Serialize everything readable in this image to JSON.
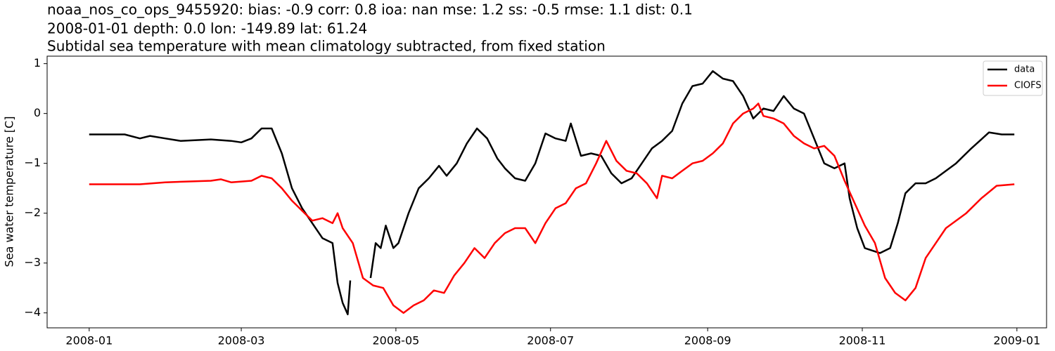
{
  "chart_data": {
    "type": "line",
    "title": [
      "noaa_nos_co_ops_9455920: bias: -0.9  corr: 0.8  ioa: nan  mse: 1.2  ss: -0.5  rmse: 1.1  dist: 0.1",
      "2008-01-01 depth: 0.0 lon: -149.89 lat: 61.24",
      "Subtidal sea temperature with mean climatology subtracted, from fixed station"
    ],
    "ylabel": "Sea water temperature [C]",
    "xlim": [
      -16.6,
      377.7
    ],
    "ylim": [
      -4.3,
      1.15
    ],
    "xticks": [
      {
        "value": 0,
        "label": "2008-01"
      },
      {
        "value": 60,
        "label": "2008-03"
      },
      {
        "value": 121,
        "label": "2008-05"
      },
      {
        "value": 182,
        "label": "2008-07"
      },
      {
        "value": 244,
        "label": "2008-09"
      },
      {
        "value": 305,
        "label": "2008-11"
      },
      {
        "value": 366,
        "label": "2009-01"
      }
    ],
    "yticks": [
      {
        "value": -4,
        "label": "−4"
      },
      {
        "value": -3,
        "label": "−3"
      },
      {
        "value": -2,
        "label": "−2"
      },
      {
        "value": -1,
        "label": "−1"
      },
      0,
      1
    ],
    "legend": "upper right",
    "series": [
      {
        "name": "data",
        "color": "#000000",
        "x": [
          0,
          14,
          20,
          24,
          30,
          36,
          48,
          56,
          60,
          64,
          68,
          72,
          76,
          80,
          84,
          88,
          92,
          96,
          98,
          100,
          102,
          103,
          107,
          111,
          113,
          115,
          117,
          120,
          122,
          126,
          130,
          134,
          138,
          141,
          145,
          149,
          153,
          157,
          161,
          164,
          168,
          172,
          176,
          180,
          184,
          188,
          190,
          194,
          198,
          202,
          206,
          210,
          214,
          218,
          222,
          226,
          230,
          234,
          238,
          242,
          246,
          250,
          254,
          258,
          262,
          266,
          270,
          274,
          278,
          282,
          286,
          290,
          294,
          298,
          300,
          303,
          306,
          312,
          316,
          319,
          322,
          326,
          330,
          334,
          342,
          348,
          355,
          360,
          365
        ],
        "values": [
          -0.42,
          -0.42,
          -0.5,
          -0.45,
          -0.5,
          -0.55,
          -0.52,
          -0.55,
          -0.58,
          -0.5,
          -0.3,
          -0.3,
          -0.8,
          -1.5,
          -1.9,
          -2.2,
          -2.5,
          -2.6,
          -3.4,
          -3.8,
          -4.03,
          -3.35,
          null,
          -3.3,
          -2.6,
          -2.7,
          -2.25,
          -2.7,
          -2.6,
          -2.0,
          -1.5,
          -1.3,
          -1.05,
          -1.25,
          -1.0,
          -0.6,
          -0.3,
          -0.5,
          -0.9,
          -1.1,
          -1.3,
          -1.35,
          -1.0,
          -0.4,
          -0.5,
          -0.55,
          -0.2,
          -0.85,
          -0.8,
          -0.85,
          -1.2,
          -1.4,
          -1.3,
          -1.0,
          -0.7,
          -0.55,
          -0.35,
          0.2,
          0.55,
          0.6,
          0.85,
          0.7,
          0.65,
          0.35,
          -0.1,
          0.1,
          0.05,
          0.35,
          0.1,
          0.0,
          -0.5,
          -1.0,
          -1.1,
          -1.0,
          -1.7,
          -2.3,
          -2.7,
          -2.8,
          -2.7,
          -2.2,
          -1.6,
          -1.4,
          -1.4,
          -1.3,
          -1.0,
          -0.7,
          -0.38,
          -0.42,
          -0.42
        ]
      },
      {
        "name": "CIOFS",
        "color": "#ff0000",
        "x": [
          0,
          20,
          30,
          48,
          52,
          56,
          64,
          68,
          72,
          76,
          80,
          84,
          88,
          92,
          96,
          98,
          100,
          104,
          108,
          112,
          116,
          120,
          124,
          128,
          132,
          136,
          140,
          144,
          148,
          152,
          156,
          160,
          164,
          168,
          172,
          176,
          180,
          184,
          188,
          192,
          196,
          200,
          204,
          208,
          212,
          216,
          220,
          224,
          226,
          230,
          234,
          238,
          242,
          246,
          250,
          254,
          258,
          262,
          264,
          266,
          270,
          274,
          278,
          282,
          286,
          290,
          294,
          298,
          302,
          306,
          310,
          314,
          318,
          322,
          326,
          330,
          334,
          338,
          346,
          352,
          358,
          365
        ],
        "values": [
          -1.42,
          -1.42,
          -1.38,
          -1.35,
          -1.32,
          -1.38,
          -1.35,
          -1.25,
          -1.3,
          -1.5,
          -1.75,
          -1.95,
          -2.15,
          -2.1,
          -2.2,
          -2.0,
          -2.3,
          -2.6,
          -3.3,
          -3.45,
          -3.5,
          -3.85,
          -4.0,
          -3.85,
          -3.75,
          -3.55,
          -3.6,
          -3.25,
          -3.0,
          -2.7,
          -2.9,
          -2.6,
          -2.4,
          -2.3,
          -2.3,
          -2.6,
          -2.2,
          -1.9,
          -1.8,
          -1.5,
          -1.4,
          -1.0,
          -0.55,
          -0.95,
          -1.15,
          -1.2,
          -1.4,
          -1.7,
          -1.25,
          -1.3,
          -1.15,
          -1.0,
          -0.95,
          -0.8,
          -0.6,
          -0.2,
          0.0,
          0.1,
          0.2,
          -0.05,
          -0.1,
          -0.2,
          -0.45,
          -0.6,
          -0.7,
          -0.65,
          -0.85,
          -1.35,
          -1.8,
          -2.25,
          -2.6,
          -3.3,
          -3.6,
          -3.75,
          -3.5,
          -2.9,
          -2.6,
          -2.3,
          -2.0,
          -1.7,
          -1.45,
          -1.42
        ]
      }
    ]
  }
}
